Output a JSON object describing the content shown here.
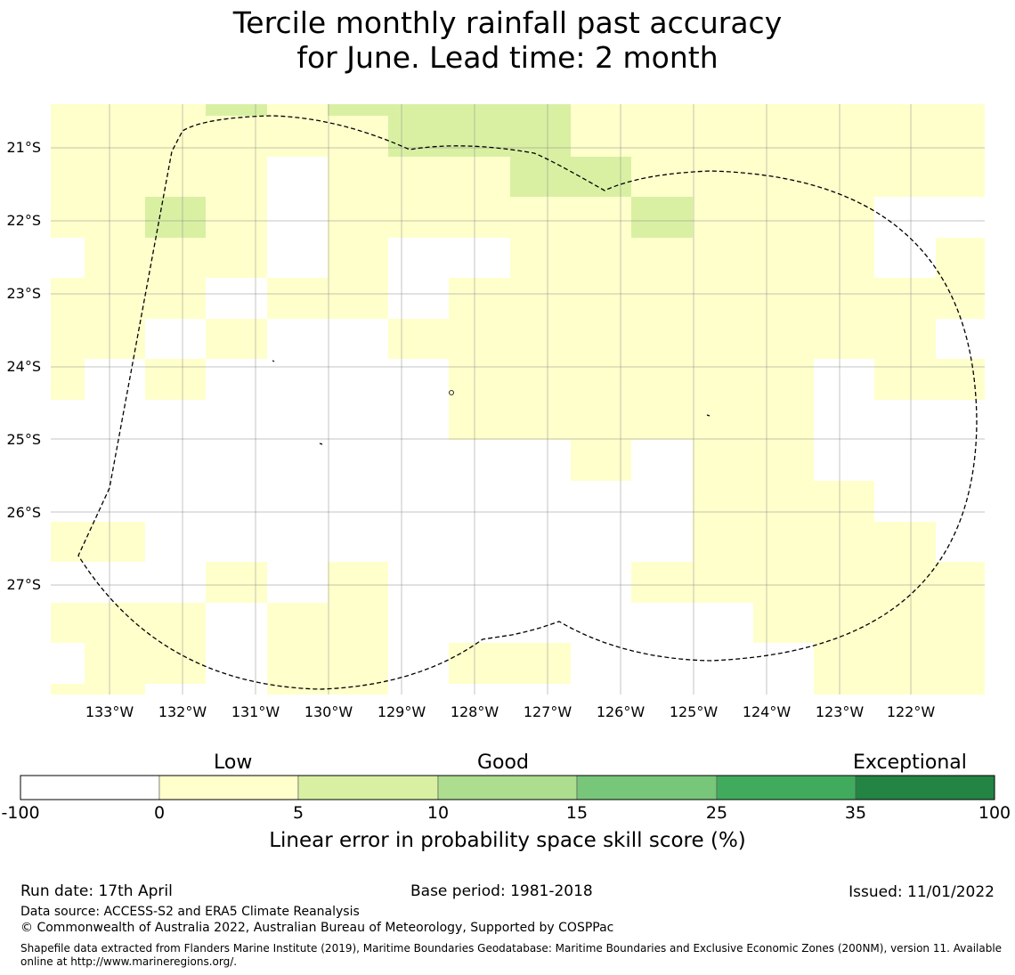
{
  "title": {
    "line1": "Tercile monthly rainfall past accuracy",
    "line2": "for June. Lead time: 2 month"
  },
  "map": {
    "lon_labels": [
      "133°W",
      "132°W",
      "131°W",
      "130°W",
      "129°W",
      "128°W",
      "127°W",
      "126°W",
      "125°W",
      "124°W",
      "123°W",
      "122°W"
    ],
    "lat_labels": [
      "21°S",
      "22°S",
      "23°S",
      "24°S",
      "25°S",
      "26°S",
      "27°S"
    ],
    "boundary_style": "dashed black line (EEZ outline)",
    "grid": true,
    "colors": {
      "band_0_5": "#ffffcc",
      "band_5_10": "#d9f0a3"
    }
  },
  "colorbar": {
    "labels_above": [
      "Low",
      "Good",
      "Exceptional"
    ],
    "bounds": [
      "-100",
      "0",
      "5",
      "10",
      "15",
      "25",
      "35",
      "100"
    ],
    "colors": [
      "#ffffff",
      "#ffffcc",
      "#d9f0a3",
      "#addd8e",
      "#78c679",
      "#41ab5d",
      "#238443"
    ],
    "label": "Linear error in probability space skill score (%)"
  },
  "footer": {
    "run_date": "Run date: 17th April",
    "base_period": "Base period: 1981-2018",
    "issued": "Issued: 11/01/2022",
    "data_source": "Data source: ACCESS-S2 and ERA5 Climate Reanalysis",
    "copyright": "© Commonwealth of Australia 2022, Australian Bureau of Meteorology, Supported by COSPPac",
    "shapefile_line1": "Shapefile data extracted from Flanders Marine Institute (2019), Maritime Boundaries Geodatabase: Maritime Boundaries and Exclusive Economic Zones (200NM), version 11. Available",
    "shapefile_line2": "online at http://www.marineregions.org/."
  }
}
